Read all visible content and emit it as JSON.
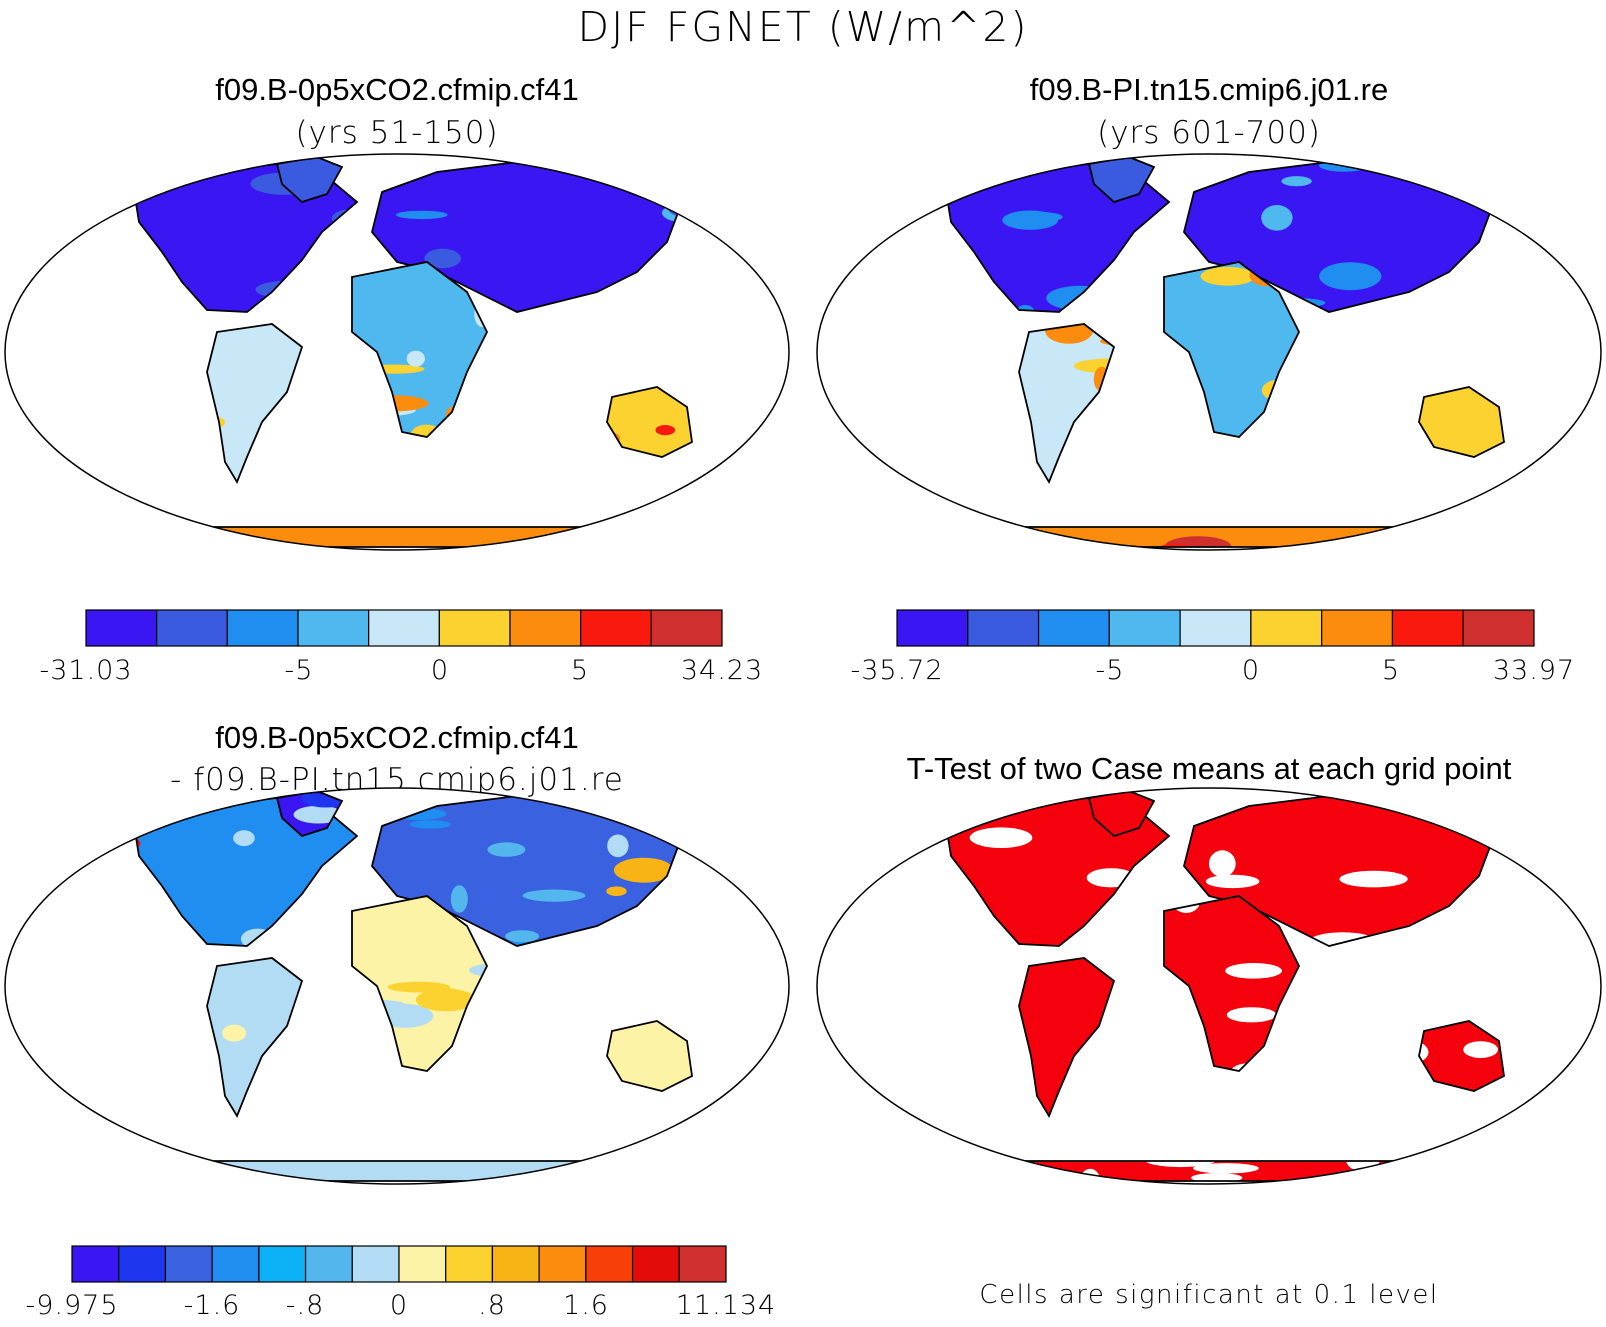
{
  "title": "DJF FGNET (W/m^2)",
  "colors": {
    "blue9": [
      "#3a16f2",
      "#3a5be0",
      "#1f8ef0",
      "#4fb8ee",
      "#c8e7f7",
      "#fbd22f",
      "#fb8c0d",
      "#f9190e",
      "#d0302d"
    ],
    "diff14": [
      "#3a16f2",
      "#1f36f0",
      "#3a62e0",
      "#1f8ef0",
      "#0cb0f4",
      "#53b7ee",
      "#b2dcf4",
      "#fdf3a6",
      "#fbd22f",
      "#f7b414",
      "#fb8c0d",
      "#f83f0a",
      "#e30c0a",
      "#d0302d"
    ],
    "signif": "#f5000d",
    "land_outline": "#000000"
  },
  "panels": [
    {
      "name": "panel-case1",
      "case": "f09.B-0p5xCO2.cfmip.cf41",
      "subtitle": "(yrs 51-150)",
      "colorbar": {
        "palette": "blue9",
        "min_label": "-31.03",
        "max_label": "34.23",
        "ticks": [
          "-5",
          "0",
          "5"
        ]
      }
    },
    {
      "name": "panel-case2",
      "case": "f09.B-PI.tn15.cmip6.j01.re",
      "subtitle": "(yrs 601-700)",
      "colorbar": {
        "palette": "blue9",
        "min_label": "-35.72",
        "max_label": "33.97",
        "ticks": [
          "-5",
          "0",
          "5"
        ]
      }
    },
    {
      "name": "panel-difference",
      "case": "f09.B-0p5xCO2.cfmip.cf41",
      "subtitle": "- f09.B-PI.tn15.cmip6.j01.re",
      "colorbar": {
        "palette": "diff14",
        "min_label": "-9.975",
        "max_label": "11.134",
        "ticks": [
          "-1.6",
          "-.8",
          "0",
          ".8",
          "1.6"
        ]
      }
    },
    {
      "name": "panel-ttest",
      "case": "T-Test of two Case means at each grid point",
      "note": "Cells are significant at 0.1 level"
    }
  ]
}
